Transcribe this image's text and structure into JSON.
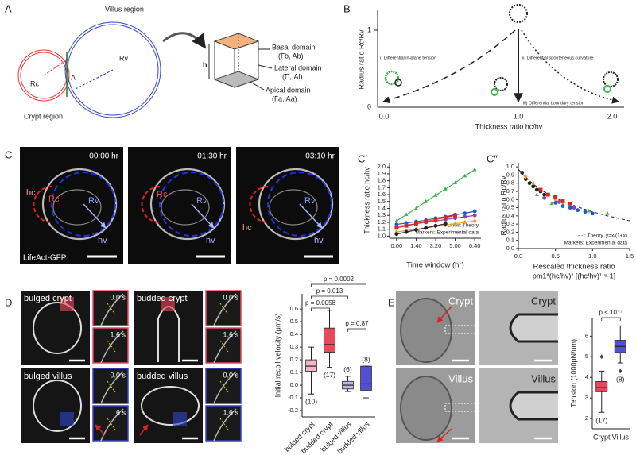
{
  "panels": {
    "A": {
      "label": "A",
      "villus_region": "Villus region",
      "crypt_region": "Crypt region",
      "rv": "Rv",
      "rc": "Rc",
      "lambda": "Λ",
      "h": "h",
      "basal": "Basal domain",
      "basal_params": "(Γb, Ab)",
      "lateral": "Lateral domain",
      "lateral_params": "(Π, Al)",
      "apical": "Apical domain",
      "apical_params": "(Γa, Aa)"
    },
    "B": {
      "label": "B",
      "y_label": "Radius ratio Rc/Rv",
      "x_label": "Thickness ratio hc/hv",
      "x_tick_labels": [
        "0.0",
        "1.0",
        "2.0"
      ],
      "y_tick_labels": [
        "0",
        "1"
      ],
      "annotations": [
        "i) Differential in-plane tension",
        "ii) Differential sponteneous curvature",
        "iii) Differential boundary tension"
      ]
    },
    "C": {
      "label": "C",
      "stain": "LifeAct-GFP",
      "images": [
        {
          "time": "00:00 hr",
          "labels": [
            "hc",
            "Rc",
            "Rv",
            "hv"
          ]
        },
        {
          "time": "01:30 hr",
          "labels": [
            "Rc",
            "Rv",
            "hv"
          ]
        },
        {
          "time": "03:10 hr",
          "labels": [
            "hc",
            "Rv",
            "hv"
          ]
        }
      ]
    },
    "D": {
      "label": "D",
      "images": [
        {
          "title": "bulged crypt",
          "times": [
            "0.0 s",
            "1.6 s"
          ]
        },
        {
          "title": "budded crypt",
          "times": [
            "0.0 s",
            "1.6 s"
          ]
        },
        {
          "title": "bulged villus",
          "times": [
            "0.0 s",
            "6 s"
          ]
        },
        {
          "title": "budded villus",
          "times": [
            "0.0 s",
            "1.6 s"
          ]
        }
      ]
    },
    "E": {
      "label": "E",
      "images": [
        "Crypt",
        "Crypt",
        "Villus",
        "Villus"
      ]
    }
  },
  "chart_data": [
    {
      "type": "line",
      "label": "C′",
      "y_label": "Thickness ratio hc/hv",
      "x_label": "Time window (hr)",
      "legend_text": [
        "Lines: Theory",
        "Markers: Experimental data"
      ],
      "x": [
        0,
        0.83,
        1.67,
        2.5,
        3.33,
        4.17,
        5,
        5.83,
        6.67
      ],
      "xlim": [
        -0.6,
        7.2
      ],
      "ylim": [
        0.97,
        2.06
      ],
      "xticks": [
        {
          "value": 0,
          "label": "0:00"
        },
        {
          "value": 1.667,
          "label": "1:40"
        },
        {
          "value": 3.333,
          "label": "3:20"
        },
        {
          "value": 5,
          "label": "5:00"
        },
        {
          "value": 6.667,
          "label": "6:40"
        }
      ],
      "yticks": [
        {
          "value": 1,
          "label": "1.0"
        },
        1.1,
        1.2,
        1.3,
        1.4,
        1.5,
        1.6,
        1.7,
        1.8,
        1.9,
        {
          "value": 2,
          "label": "2.0"
        }
      ],
      "series": [
        {
          "color": "#3cb44b",
          "marker": "triangle",
          "values": [
            1.22,
            1.31,
            1.4,
            1.5,
            1.59,
            1.68,
            1.77,
            1.87,
            1.96
          ]
        },
        {
          "color": "#2255cc",
          "marker": "circle",
          "values": [
            1.17,
            1.19,
            1.21,
            1.23,
            1.26,
            1.28,
            1.31,
            1.33,
            1.36
          ]
        },
        {
          "color": "#8844aa",
          "marker": "circle",
          "values": [
            1.14,
            1.16,
            1.18,
            1.2,
            1.22,
            1.24,
            1.26,
            1.28,
            1.3
          ]
        },
        {
          "color": "#d62728",
          "marker": "square",
          "values": [
            1.12,
            1.15,
            1.18,
            1.21,
            1.24,
            1.27,
            1.3,
            null,
            null
          ]
        },
        {
          "color": "#f29b1d",
          "marker": "diamond",
          "values": [
            1.06,
            1.08,
            1.1,
            1.12,
            1.14,
            1.16,
            1.18,
            1.2,
            1.22
          ]
        },
        {
          "color": "#222222",
          "marker": "circle",
          "values": [
            1.03,
            1.06,
            1.09,
            1.12,
            1.15,
            1.18,
            null,
            null,
            null
          ]
        }
      ]
    },
    {
      "type": "scatter",
      "label": "C″",
      "y_label": "Radius ratio Rc/Rv",
      "x_label": "Rescaled thickness ratio",
      "x_label_2": "pm1*(hc/hv)² [(hc/hv)¹·⁵-1]",
      "legend_text": [
        "- - : Theory, y=x/(1+x)",
        "Markers: Experimental data"
      ],
      "xlim": [
        0,
        1.5
      ],
      "ylim": [
        0,
        1.05
      ],
      "xticks": [
        {
          "value": 0,
          "label": "0.0"
        },
        0.5,
        {
          "value": 1,
          "label": "1.0"
        },
        1.5
      ],
      "yticks": [
        {
          "value": 0,
          "label": "0.0"
        },
        0.1,
        0.2,
        0.3,
        0.4,
        0.5,
        0.6,
        0.7,
        0.8,
        0.9,
        {
          "value": 1,
          "label": "1.0"
        }
      ],
      "series": [
        {
          "color": "#222222",
          "line": "dashed",
          "x": [
            0,
            0.1,
            0.2,
            0.3,
            0.4,
            0.5,
            0.6,
            0.8,
            1.0,
            1.2,
            1.5
          ],
          "values": [
            0.97,
            0.87,
            0.79,
            0.72,
            0.67,
            0.62,
            0.58,
            0.51,
            0.45,
            0.4,
            0.34
          ]
        },
        {
          "color": "#222222",
          "marker": "circle",
          "x": [
            0.05,
            0.1,
            0.15,
            0.2,
            0.25,
            0.3,
            0.35
          ],
          "values": [
            0.93,
            0.85,
            0.8,
            0.76,
            0.72,
            0.7,
            0.66
          ]
        },
        {
          "color": "#f29b1d",
          "marker": "diamond",
          "x": [
            0.1,
            0.2,
            0.3,
            0.4,
            0.5,
            0.6
          ],
          "values": [
            0.88,
            0.8,
            0.72,
            0.66,
            0.6,
            0.56
          ]
        },
        {
          "color": "#d62728",
          "marker": "square",
          "x": [
            0.3,
            0.4,
            0.5,
            0.6,
            0.7
          ],
          "values": [
            0.72,
            0.66,
            0.63,
            0.58,
            0.55
          ]
        },
        {
          "color": "#3cb44b",
          "marker": "triangle",
          "x": [
            0.25,
            0.45,
            0.7,
            0.95,
            1.2
          ],
          "values": [
            0.66,
            0.55,
            0.5,
            0.46,
            0.43
          ]
        },
        {
          "color": "#2255cc",
          "marker": "circle",
          "x": [
            0.5,
            0.6,
            0.7,
            0.8,
            0.9,
            1.0
          ],
          "values": [
            0.56,
            0.52,
            0.5,
            0.47,
            0.45,
            0.43
          ]
        },
        {
          "color": "#8844aa",
          "marker": "circle",
          "x": [
            0.35,
            0.55,
            0.75
          ],
          "values": [
            0.62,
            0.57,
            0.5
          ]
        }
      ]
    },
    {
      "type": "box",
      "y_label": "Initial recoil velocity (μm/s)",
      "categories": [
        "bulged crypt",
        "budded crypt",
        "bulged villus",
        "budded villus"
      ],
      "ylim": [
        -0.25,
        0.72
      ],
      "yticks": [
        -0.2,
        -0.1,
        {
          "value": 0,
          "label": "0.0"
        },
        0.1,
        0.2,
        0.3,
        0.4,
        0.5,
        0.6
      ],
      "sample_sizes": [
        "(10)",
        "(17)",
        "(6)",
        "(8)"
      ],
      "p_values": [
        "p = 0.0002",
        "p = 0.013",
        "p = 0.0058",
        "p = 0.87"
      ],
      "boxes": [
        {
          "color": "#f4b6c2",
          "low": -0.07,
          "q1": 0.11,
          "median": 0.15,
          "q3": 0.2,
          "high": 0.3,
          "outliers": []
        },
        {
          "color": "#e8495a",
          "low": 0.14,
          "q1": 0.26,
          "median": 0.32,
          "q3": 0.45,
          "high": 0.59,
          "outliers": []
        },
        {
          "color": "#b8b8e6",
          "low": -0.05,
          "q1": -0.03,
          "median": 0.0,
          "q3": 0.03,
          "high": 0.07,
          "outliers": []
        },
        {
          "color": "#5050d0",
          "low": -0.1,
          "q1": -0.04,
          "median": 0.01,
          "q3": 0.15,
          "high": 0.15,
          "outliers": []
        }
      ]
    },
    {
      "type": "box",
      "y_label": "Tension (1000pN/um)",
      "categories": [
        "Crypt",
        "Villus"
      ],
      "ylim": [
        1.5,
        6.9
      ],
      "yticks": [
        2,
        3,
        4,
        5,
        6
      ],
      "sample_sizes": [
        "(17)",
        "(8)"
      ],
      "p_values": [
        "p < 10⁻⁴"
      ],
      "boxes": [
        {
          "color": "#e8495a",
          "low": 2.3,
          "q1": 3.3,
          "median": 3.5,
          "q3": 3.8,
          "high": 4.3,
          "outliers": [
            5.0
          ]
        },
        {
          "color": "#5050d0",
          "low": 4.7,
          "q1": 5.2,
          "median": 5.5,
          "q3": 5.8,
          "high": 6.5,
          "outliers": [
            4.3
          ]
        }
      ]
    }
  ]
}
